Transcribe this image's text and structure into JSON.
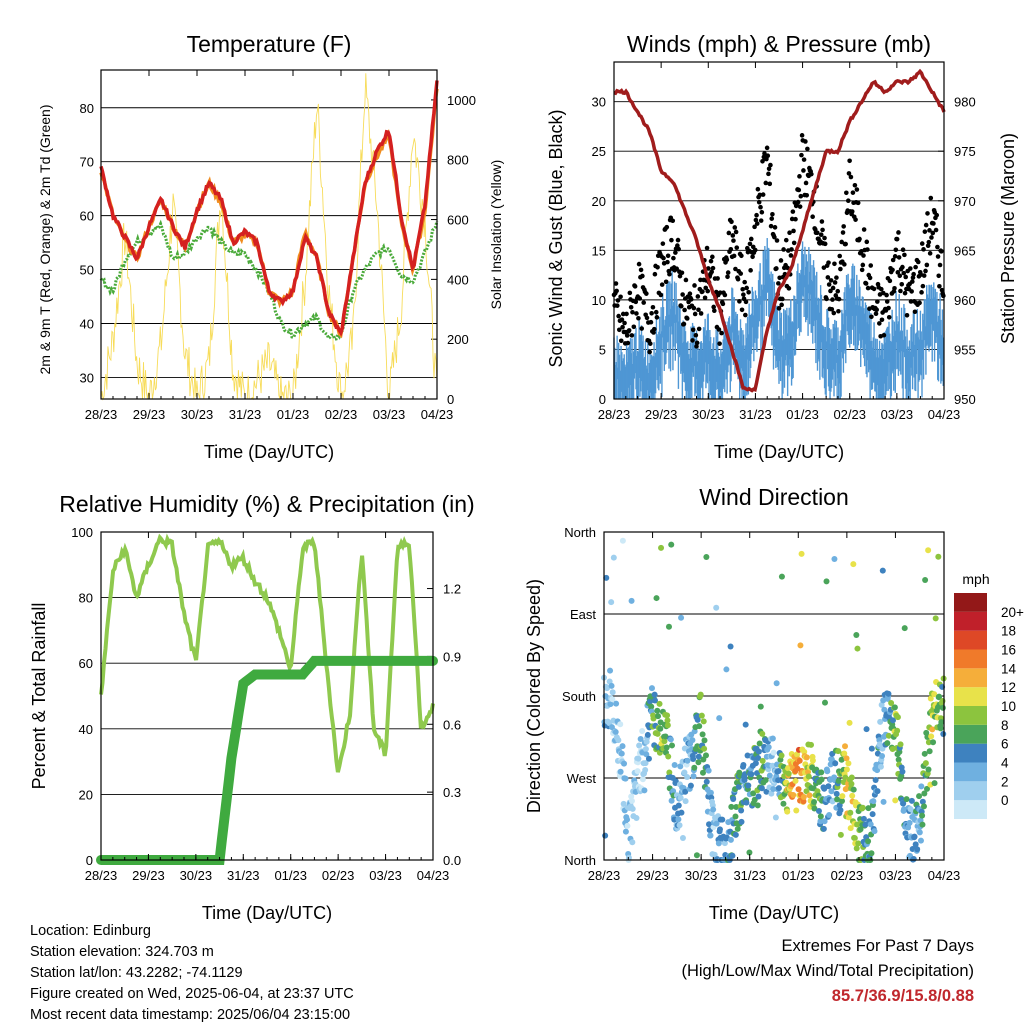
{
  "x_ticks": [
    "28/23",
    "29/23",
    "30/23",
    "31/23",
    "01/23",
    "02/23",
    "03/23",
    "04/23"
  ],
  "xlabel": "Time (Day/UTC)",
  "footer": {
    "location": "Location: Edinburg",
    "elevation": "Station elevation: 324.703 m",
    "latlon": "Station lat/lon: 43.2282; -74.1129",
    "created": "Figure created on Wed, 2025-06-04, at 23:37 UTC",
    "recent": "Most recent data timestamp: 2025/06/04 23:15:00",
    "extremes_title": "Extremes For Past 7 Days",
    "extremes_sub": "(High/Low/Max Wind/Total Precipitation)",
    "extremes_values": "85.7/36.9/15.8/0.88"
  },
  "chart_data": [
    {
      "type": "line",
      "title": "Temperature (F)",
      "xlabel": "Time (Day/UTC)",
      "ylabel": "2m & 9m T (Red, Orange) & 2m Td (Green)",
      "ylabel_right": "Solar Insolation (Yellow)",
      "ylim": [
        26,
        87
      ],
      "yticks": [
        30,
        40,
        50,
        60,
        70,
        80
      ],
      "ylim_right": [
        0,
        1100
      ],
      "yticks_right": [
        0,
        200,
        400,
        600,
        800,
        1000
      ],
      "x": [
        0,
        0.25,
        0.5,
        0.75,
        1,
        1.25,
        1.5,
        1.75,
        2,
        2.25,
        2.5,
        2.75,
        3,
        3.25,
        3.5,
        3.75,
        4,
        4.25,
        4.5,
        4.75,
        5,
        5.25,
        5.5,
        5.75,
        6,
        6.25,
        6.5,
        6.75,
        7
      ],
      "series": [
        {
          "color": "#d42020",
          "values": [
            69,
            60,
            56,
            52,
            58,
            63,
            58,
            54,
            61,
            66,
            63,
            55,
            57,
            55,
            46,
            44,
            46,
            56,
            52,
            42,
            38,
            52,
            66,
            72,
            76,
            60,
            50,
            62,
            85
          ]
        },
        {
          "color": "#f08c1e",
          "values": [
            68.5,
            60,
            55.5,
            52,
            58,
            63,
            58,
            54,
            61,
            66,
            62.5,
            55,
            56.5,
            55,
            46,
            44,
            46,
            57,
            52,
            42,
            38,
            52,
            66,
            71,
            75,
            59,
            50,
            61,
            84
          ]
        },
        {
          "color": "#4aaa3a",
          "values": [
            48,
            46,
            52,
            55,
            57,
            58,
            52,
            53,
            56,
            58,
            55,
            53,
            53,
            50,
            46,
            40,
            38,
            40,
            41,
            37,
            38,
            46,
            50,
            53,
            54,
            49,
            48,
            53,
            59
          ]
        },
        {
          "color": "#f7dc5a",
          "axis": "right",
          "values": [
            0,
            200,
            550,
            120,
            0,
            180,
            650,
            150,
            0,
            120,
            700,
            100,
            0,
            60,
            120,
            0,
            0,
            400,
            1000,
            350,
            0,
            200,
            1050,
            650,
            0,
            300,
            900,
            600,
            0
          ]
        }
      ]
    },
    {
      "type": "scatter",
      "title": "Winds (mph) & Pressure (mb)",
      "xlabel": "Time (Day/UTC)",
      "ylabel": "Sonic Wind & Gust (Blue, Black)",
      "ylabel_right": "Station Pressure (Maroon)",
      "ylim": [
        0,
        34
      ],
      "yticks": [
        0,
        5,
        10,
        15,
        20,
        25,
        30
      ],
      "ylim_right": [
        950,
        984
      ],
      "yticks_right": [
        950,
        955,
        960,
        965,
        970,
        975,
        980
      ],
      "x": [
        0,
        0.25,
        0.5,
        0.75,
        1,
        1.25,
        1.5,
        1.75,
        2,
        2.25,
        2.5,
        2.75,
        3,
        3.25,
        3.5,
        3.75,
        4,
        4.25,
        4.5,
        4.75,
        5,
        5.25,
        5.5,
        5.75,
        6,
        6.25,
        6.5,
        6.75,
        7
      ],
      "series": [
        {
          "name": "wind",
          "color": "#4f97d4",
          "values": [
            5,
            3,
            6,
            4,
            8,
            11,
            6,
            5,
            7,
            4,
            9,
            6,
            10,
            14,
            7,
            8,
            14,
            12,
            7,
            6,
            12,
            10,
            6,
            5,
            9,
            6,
            7,
            11,
            7
          ]
        },
        {
          "name": "gust",
          "color": "#000000",
          "values": [
            9,
            6,
            11,
            7,
            13,
            16,
            9,
            8,
            13,
            8,
            16,
            10,
            17,
            24,
            11,
            14,
            24,
            20,
            12,
            10,
            21,
            16,
            9,
            8,
            15,
            10,
            12,
            18,
            11
          ]
        },
        {
          "name": "pressure",
          "color": "#a01c1c",
          "axis": "right",
          "values": [
            981,
            981,
            979,
            977,
            973,
            972,
            969,
            966,
            962,
            959,
            955,
            951,
            951,
            957,
            961,
            963,
            967,
            971,
            975,
            975,
            978,
            980,
            982,
            981,
            982,
            982,
            983,
            981,
            979
          ]
        }
      ]
    },
    {
      "type": "line",
      "title": "Relative Humidity (%) & Precipitation (in)",
      "xlabel": "Time (Day/UTC)",
      "ylabel": "Percent & Total Rainfall",
      "ylim": [
        0,
        100
      ],
      "yticks": [
        0,
        20,
        40,
        60,
        80,
        100
      ],
      "ylim_right": [
        0,
        1.45
      ],
      "yticks_right": [
        "0.0",
        "0.3",
        "0.6",
        "0.9",
        "1.2"
      ],
      "x": [
        0,
        0.25,
        0.5,
        0.75,
        1,
        1.25,
        1.5,
        1.75,
        2,
        2.25,
        2.5,
        2.75,
        3,
        3.25,
        3.5,
        3.75,
        4,
        4.25,
        4.5,
        4.75,
        5,
        5.25,
        5.5,
        5.75,
        6,
        6.25,
        6.5,
        6.75,
        7
      ],
      "series": [
        {
          "name": "rh",
          "color": "#8fc94e",
          "values": [
            50,
            88,
            95,
            80,
            90,
            98,
            96,
            75,
            60,
            95,
            97,
            90,
            92,
            85,
            80,
            70,
            58,
            95,
            97,
            60,
            26,
            45,
            95,
            40,
            32,
            95,
            97,
            40,
            47
          ]
        },
        {
          "name": "precip",
          "color": "#3faa3f",
          "axis": "right",
          "values": [
            0,
            0,
            0,
            0,
            0,
            0,
            0,
            0,
            0,
            0,
            0,
            0.45,
            0.78,
            0.82,
            0.82,
            0.82,
            0.82,
            0.82,
            0.88,
            0.88,
            0.88,
            0.88,
            0.88,
            0.88,
            0.88,
            0.88,
            0.88,
            0.88,
            0.88
          ]
        }
      ]
    },
    {
      "type": "scatter",
      "title": "Wind Direction",
      "xlabel": "Time (Day/UTC)",
      "ylabel": "Direction (Colored By Speed)",
      "ylim": [
        0,
        360
      ],
      "yticks": [
        "North",
        "East",
        "South",
        "West",
        "North"
      ],
      "colorbar_label": "mph",
      "colorbar_ticks": [
        "0",
        "2",
        "4",
        "6",
        "8",
        "10",
        "12",
        "14",
        "16",
        "18",
        "20+"
      ],
      "colorbar_colors": [
        "#cde9f7",
        "#9fcfee",
        "#6fb0e0",
        "#3e82bf",
        "#4aa45a",
        "#8cc43e",
        "#e8e24a",
        "#f5ae3a",
        "#f07a2a",
        "#de4826",
        "#c0202a",
        "#931818"
      ],
      "x": [
        0,
        0.25,
        0.5,
        0.75,
        1,
        1.25,
        1.5,
        1.75,
        2,
        2.25,
        2.5,
        2.75,
        3,
        3.25,
        3.5,
        3.75,
        4,
        4.25,
        4.5,
        4.75,
        5,
        5.25,
        5.5,
        5.75,
        6,
        6.25,
        6.5,
        6.75,
        7
      ],
      "values": [
        180,
        200,
        330,
        260,
        200,
        220,
        300,
        250,
        210,
        340,
        350,
        300,
        270,
        250,
        260,
        280,
        270,
        260,
        300,
        270,
        280,
        330,
        340,
        200,
        210,
        330,
        320,
        200,
        190
      ],
      "speeds": [
        5,
        3,
        4,
        2,
        8,
        11,
        5,
        4,
        10,
        4,
        6,
        8,
        7,
        9,
        3,
        12,
        16,
        12,
        7,
        6,
        14,
        10,
        7,
        5,
        11,
        6,
        6,
        12,
        9
      ]
    }
  ]
}
